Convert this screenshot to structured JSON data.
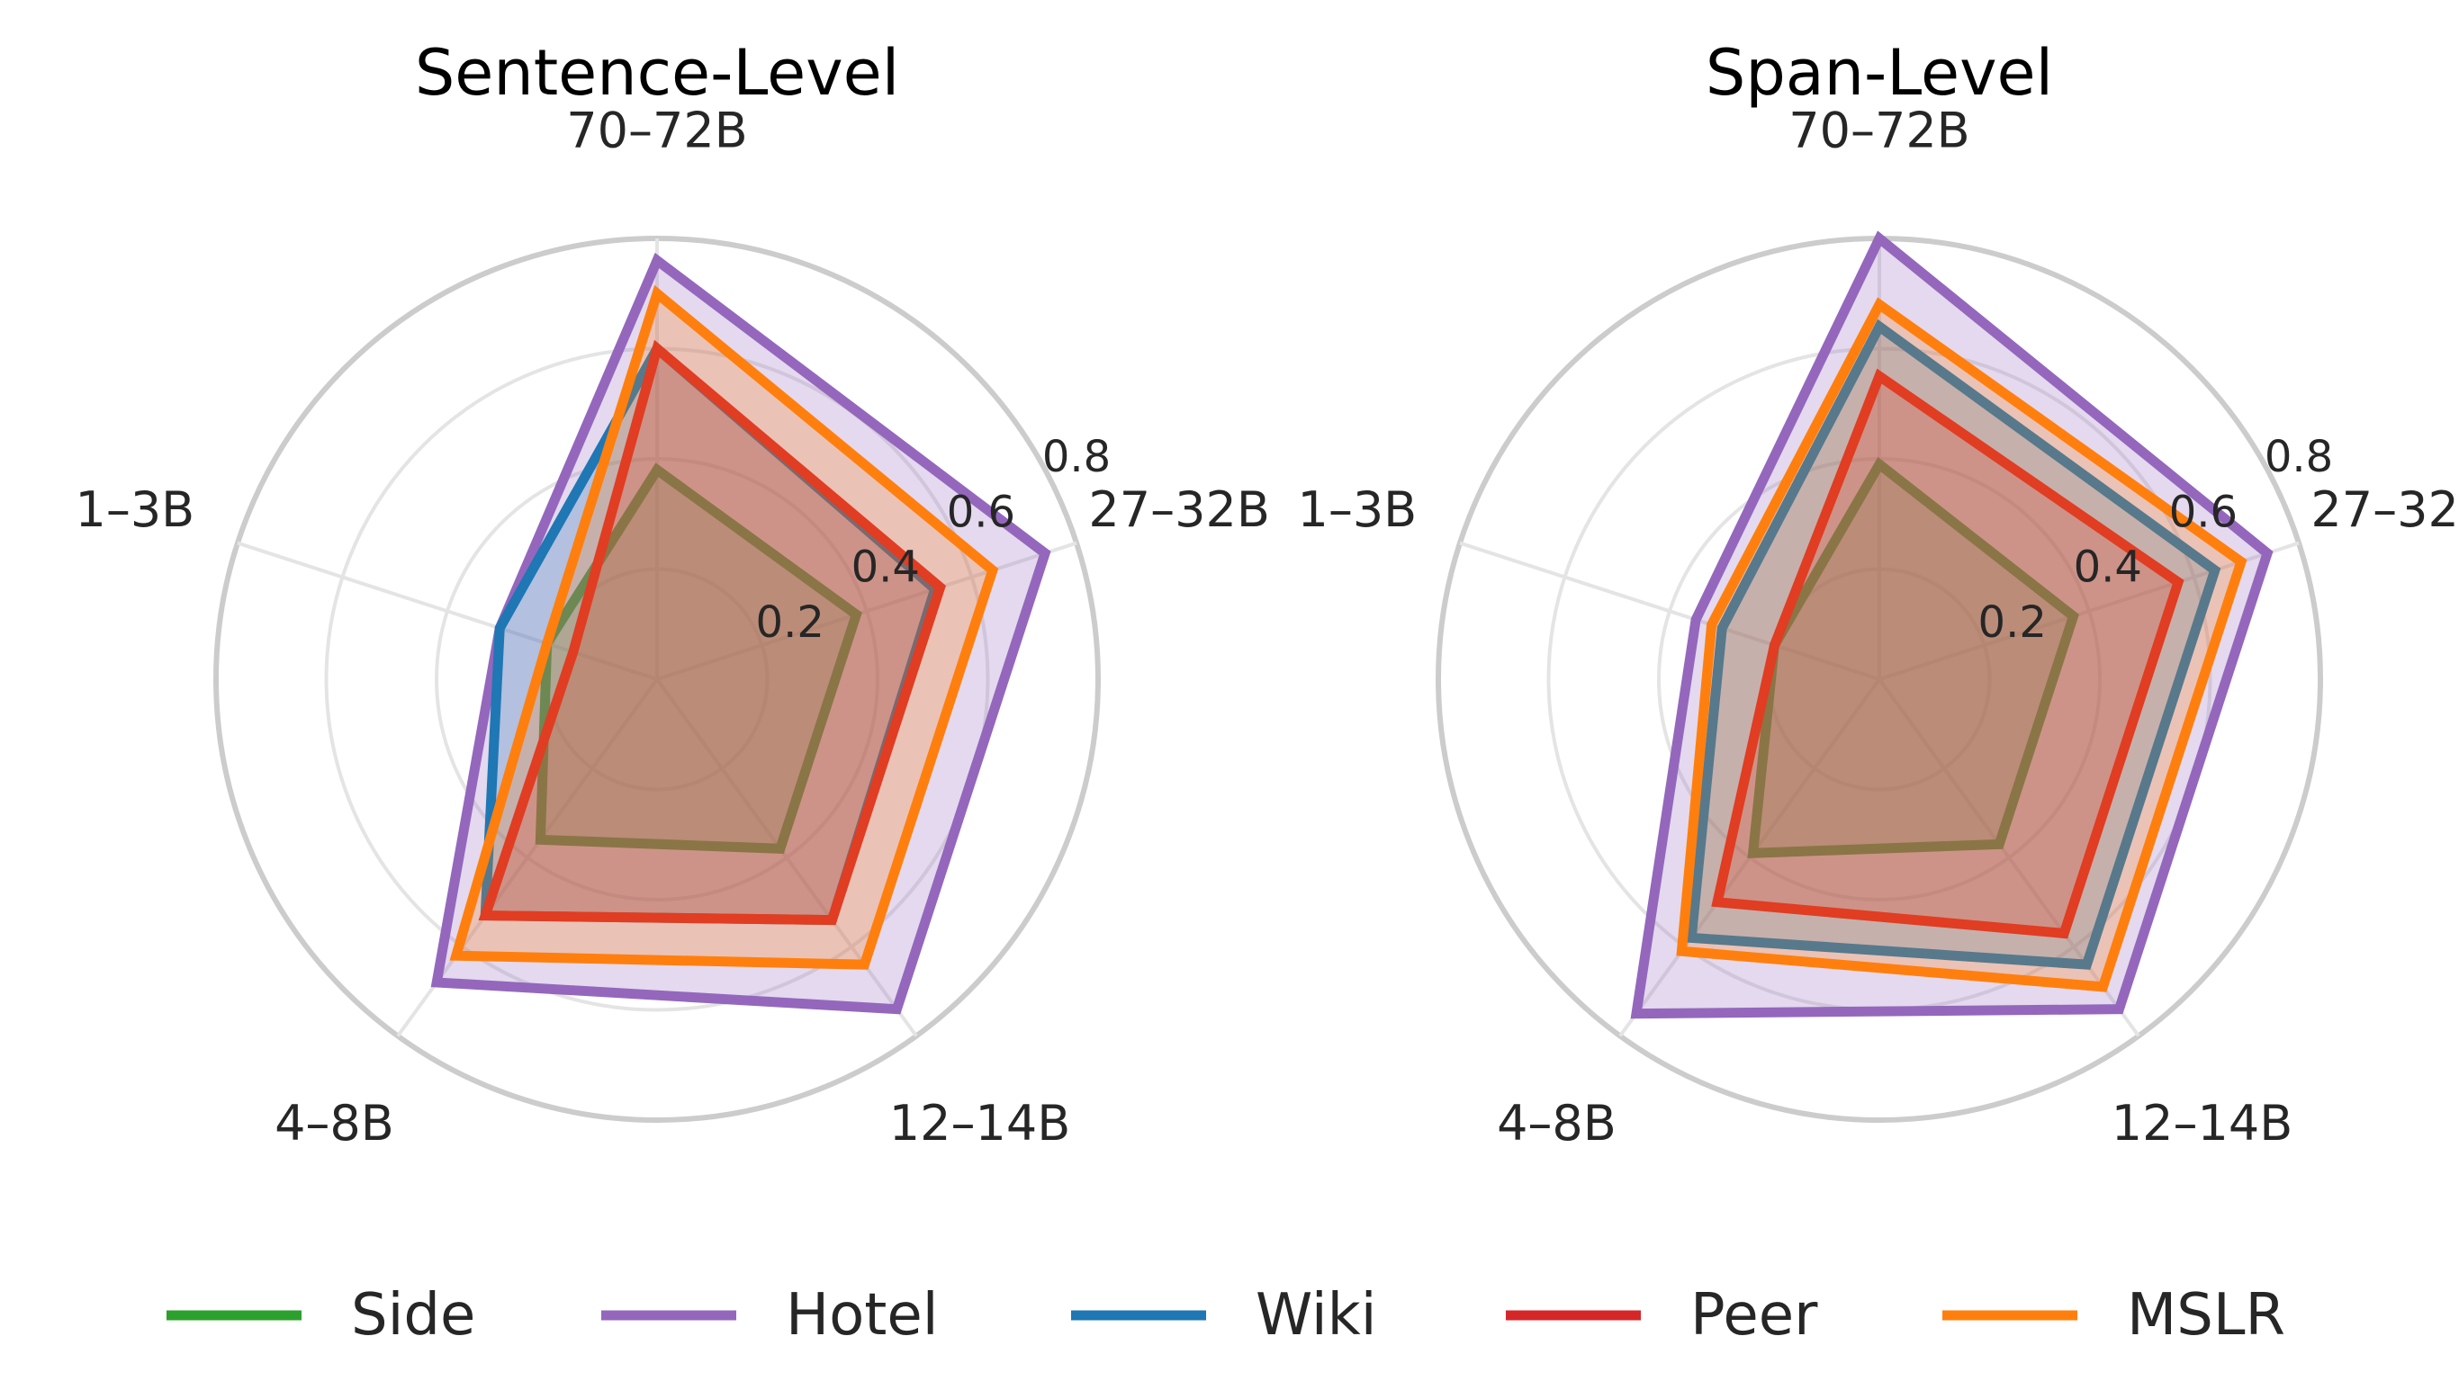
{
  "chart_data": [
    {
      "type": "radar",
      "title": "Sentence-Level",
      "axes": [
        "70–72B",
        "27–32B",
        "12–14B",
        "4–8B",
        "1–3B"
      ],
      "rlim": [
        0,
        0.8
      ],
      "rticks": [
        0.2,
        0.4,
        0.6,
        0.8
      ],
      "rtick_labels": [
        "0.2",
        "0.4",
        "0.6",
        "0.8"
      ],
      "grid": true,
      "series": [
        {
          "name": "Side",
          "color": "#2ca02c",
          "values": [
            0.38,
            0.38,
            0.38,
            0.36,
            0.21
          ]
        },
        {
          "name": "Hotel",
          "color": "#9467bd",
          "values": [
            0.76,
            0.74,
            0.74,
            0.68,
            0.3
          ]
        },
        {
          "name": "Wiki",
          "color": "#1f77b4",
          "values": [
            0.6,
            0.53,
            0.54,
            0.53,
            0.3
          ]
        },
        {
          "name": "Peer",
          "color": "#d62728",
          "values": [
            0.6,
            0.54,
            0.54,
            0.53,
            0.16
          ]
        },
        {
          "name": "MSLR",
          "color": "#ff7f0e",
          "values": [
            0.7,
            0.64,
            0.64,
            0.62,
            0.21
          ]
        }
      ]
    },
    {
      "type": "radar",
      "title": "Span-Level",
      "axes": [
        "70–72B",
        "27–32B",
        "12–14B",
        "4–8B",
        "1–3B"
      ],
      "rlim": [
        0,
        0.8
      ],
      "rticks": [
        0.2,
        0.4,
        0.6,
        0.8
      ],
      "rtick_labels": [
        "0.2",
        "0.4",
        "0.6",
        "0.8"
      ],
      "grid": true,
      "series": [
        {
          "name": "Side",
          "color": "#2ca02c",
          "values": [
            0.39,
            0.37,
            0.37,
            0.39,
            0.2
          ]
        },
        {
          "name": "Hotel",
          "color": "#9467bd",
          "values": [
            0.8,
            0.74,
            0.74,
            0.75,
            0.35
          ]
        },
        {
          "name": "Wiki",
          "color": "#1f77b4",
          "values": [
            0.64,
            0.64,
            0.64,
            0.58,
            0.3
          ]
        },
        {
          "name": "Peer",
          "color": "#d62728",
          "values": [
            0.55,
            0.57,
            0.57,
            0.5,
            0.2
          ]
        },
        {
          "name": "MSLR",
          "color": "#ff7f0e",
          "values": [
            0.68,
            0.69,
            0.69,
            0.61,
            0.32
          ]
        }
      ]
    }
  ],
  "legend": {
    "placement": "bottom",
    "items": [
      {
        "label": "Side",
        "color": "#2ca02c"
      },
      {
        "label": "Hotel",
        "color": "#9467bd"
      },
      {
        "label": "Wiki",
        "color": "#1f77b4"
      },
      {
        "label": "Peer",
        "color": "#d62728"
      },
      {
        "label": "MSLR",
        "color": "#ff7f0e"
      }
    ]
  }
}
